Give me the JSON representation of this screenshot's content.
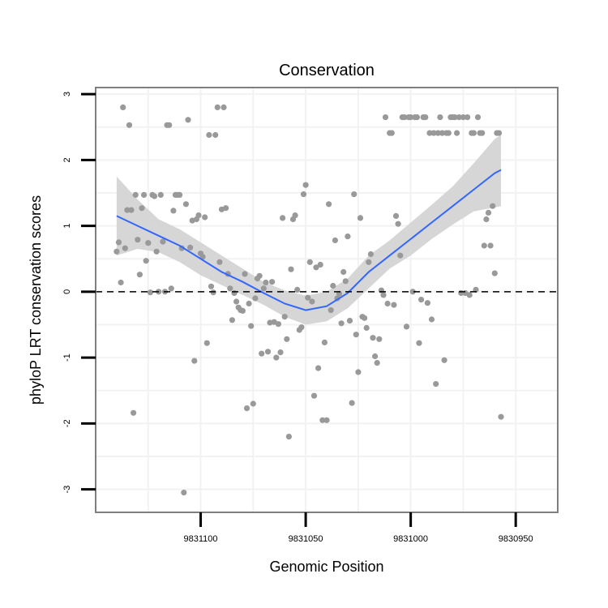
{
  "chart_data": {
    "type": "scatter",
    "title": "Conservation",
    "xlabel": "Genomic Position",
    "ylabel": "phyloP LRT conservation scores",
    "x_reversed": true,
    "xlim": [
      9831150,
      9830930
    ],
    "ylim": [
      -3.35,
      3.1
    ],
    "x_ticks": [
      9831100,
      9831050,
      9831000,
      9830950
    ],
    "x_tick_labels": [
      "9831100",
      "9831050",
      "9831000",
      "9830950"
    ],
    "y_ticks": [
      -3,
      -2,
      -1,
      0,
      1,
      2,
      3
    ],
    "y_tick_labels": [
      "-3",
      "-2",
      "-1",
      "0",
      "1",
      "2",
      "3"
    ],
    "reference_line": {
      "y": 0,
      "style": "dashed"
    },
    "grid": true,
    "colors": {
      "points": "#999999",
      "smooth_line": "#3366FF",
      "ribbon": "#D4D4D4",
      "grid": "#F2F2F2",
      "frame": "#7F7F7F"
    },
    "series": [
      {
        "name": "scores",
        "points": [
          [
            9831140,
            0.61
          ],
          [
            9831139,
            0.75
          ],
          [
            9831138,
            0.14
          ],
          [
            9831137,
            2.8
          ],
          [
            9831136,
            0.66
          ],
          [
            9831135,
            1.24
          ],
          [
            9831134,
            2.53
          ],
          [
            9831133,
            1.24
          ],
          [
            9831132,
            -1.84
          ],
          [
            9831131,
            1.47
          ],
          [
            9831130,
            0.79
          ],
          [
            9831129,
            0.26
          ],
          [
            9831128,
            1.27
          ],
          [
            9831127,
            1.47
          ],
          [
            9831126,
            0.47
          ],
          [
            9831125,
            0.74
          ],
          [
            9831124,
            -0.01
          ],
          [
            9831123,
            1.47
          ],
          [
            9831122,
            1.45
          ],
          [
            9831121,
            0.61
          ],
          [
            9831120,
            0.0
          ],
          [
            9831119,
            1.47
          ],
          [
            9831118,
            0.76
          ],
          [
            9831117,
            0.0
          ],
          [
            9831116,
            2.53
          ],
          [
            9831115,
            2.53
          ],
          [
            9831114,
            0.05
          ],
          [
            9831113,
            1.23
          ],
          [
            9831112,
            1.47
          ],
          [
            9831111,
            1.47
          ],
          [
            9831110,
            1.47
          ],
          [
            9831109,
            0.66
          ],
          [
            9831108,
            -3.05
          ],
          [
            9831107,
            1.33
          ],
          [
            9831106,
            2.61
          ],
          [
            9831105,
            0.67
          ],
          [
            9831104,
            1.08
          ],
          [
            9831103,
            -1.05
          ],
          [
            9831102,
            1.1
          ],
          [
            9831101,
            1.16
          ],
          [
            9831100,
            0.58
          ],
          [
            9831099,
            0.53
          ],
          [
            9831098,
            1.13
          ],
          [
            9831097,
            -0.78
          ],
          [
            9831096,
            2.38
          ],
          [
            9831095,
            0.08
          ],
          [
            9831094,
            -0.01
          ],
          [
            9831093,
            2.38
          ],
          [
            9831092,
            2.8
          ],
          [
            9831091,
            0.45
          ],
          [
            9831090,
            1.25
          ],
          [
            9831089,
            2.8
          ],
          [
            9831088,
            1.27
          ],
          [
            9831087,
            0.27
          ],
          [
            9831086,
            0.05
          ],
          [
            9831085,
            -0.43
          ],
          [
            9831084,
            -0.02
          ],
          [
            9831083,
            -0.15
          ],
          [
            9831082,
            -0.24
          ],
          [
            9831081,
            -0.28
          ],
          [
            9831080,
            -0.29
          ],
          [
            9831079,
            0.27
          ],
          [
            9831078,
            -1.77
          ],
          [
            9831077,
            -0.18
          ],
          [
            9831076,
            -0.52
          ],
          [
            9831075,
            -1.7
          ],
          [
            9831074,
            -0.1
          ],
          [
            9831073,
            0.2
          ],
          [
            9831072,
            0.24
          ],
          [
            9831071,
            -0.94
          ],
          [
            9831070,
            0.05
          ],
          [
            9831069,
            0.14
          ],
          [
            9831068,
            -0.91
          ],
          [
            9831067,
            -0.47
          ],
          [
            9831066,
            0.15
          ],
          [
            9831065,
            -0.46
          ],
          [
            9831064,
            -1.0
          ],
          [
            9831063,
            -0.49
          ],
          [
            9831062,
            -0.92
          ],
          [
            9831061,
            1.12
          ],
          [
            9831060,
            -0.38
          ],
          [
            9831059,
            -0.72
          ],
          [
            9831058,
            -2.2
          ],
          [
            9831057,
            0.34
          ],
          [
            9831056,
            1.1
          ],
          [
            9831055,
            1.16
          ],
          [
            9831054,
            0.03
          ],
          [
            9831053,
            -0.58
          ],
          [
            9831052,
            -0.54
          ],
          [
            9831051,
            1.48
          ],
          [
            9831050,
            1.62
          ],
          [
            9831049,
            -0.09
          ],
          [
            9831048,
            0.45
          ],
          [
            9831047,
            -0.15
          ],
          [
            9831046,
            -1.58
          ],
          [
            9831045,
            0.37
          ],
          [
            9831044,
            -1.16
          ],
          [
            9831043,
            0.41
          ],
          [
            9831042,
            -1.95
          ],
          [
            9831041,
            -0.77
          ],
          [
            9831040,
            -1.95
          ],
          [
            9831039,
            1.33
          ],
          [
            9831038,
            -0.28
          ],
          [
            9831037,
            0.09
          ],
          [
            9831036,
            0.78
          ],
          [
            9831035,
            -0.1
          ],
          [
            9831034,
            -0.03
          ],
          [
            9831033,
            -0.48
          ],
          [
            9831032,
            0.3
          ],
          [
            9831031,
            0.16
          ],
          [
            9831030,
            0.84
          ],
          [
            9831029,
            -0.44
          ],
          [
            9831028,
            -1.69
          ],
          [
            9831027,
            1.48
          ],
          [
            9831026,
            -0.65
          ],
          [
            9831025,
            -1.22
          ],
          [
            9831024,
            1.12
          ],
          [
            9831023,
            -0.38
          ],
          [
            9831022,
            -0.4
          ],
          [
            9831021,
            -0.55
          ],
          [
            9831020,
            0.45
          ],
          [
            9831019,
            0.57
          ],
          [
            9831018,
            -0.7
          ],
          [
            9831017,
            -0.98
          ],
          [
            9831016,
            -1.08
          ],
          [
            9831015,
            -0.72
          ],
          [
            9831014,
            0.02
          ],
          [
            9831013,
            -0.05
          ],
          [
            9831012,
            2.65
          ],
          [
            9831011,
            -0.18
          ],
          [
            9831010,
            2.41
          ],
          [
            9831009,
            2.41
          ],
          [
            9831008,
            -0.2
          ],
          [
            9831007,
            1.15
          ],
          [
            9831006,
            1.03
          ],
          [
            9831005,
            0.55
          ],
          [
            9831004,
            2.65
          ],
          [
            9831003,
            2.65
          ],
          [
            9831002,
            -0.53
          ],
          [
            9831001,
            2.65
          ],
          [
            9831000,
            2.65
          ],
          [
            9830999,
            0.0
          ],
          [
            9830998,
            2.65
          ],
          [
            9830997,
            2.65
          ],
          [
            9830996,
            -0.78
          ],
          [
            9830995,
            -0.12
          ],
          [
            9830994,
            2.65
          ],
          [
            9830993,
            2.65
          ],
          [
            9830992,
            -0.17
          ],
          [
            9830991,
            2.41
          ],
          [
            9830990,
            -0.42
          ],
          [
            9830989,
            2.41
          ],
          [
            9830988,
            -1.4
          ],
          [
            9830987,
            2.41
          ],
          [
            9830986,
            2.65
          ],
          [
            9830985,
            2.41
          ],
          [
            9830984,
            -1.04
          ],
          [
            9830983,
            2.41
          ],
          [
            9830982,
            2.41
          ],
          [
            9830981,
            2.65
          ],
          [
            9830980,
            2.65
          ],
          [
            9830979,
            2.65
          ],
          [
            9830978,
            2.41
          ],
          [
            9830977,
            2.65
          ],
          [
            9830976,
            -0.02
          ],
          [
            9830975,
            2.65
          ],
          [
            9830974,
            -0.02
          ],
          [
            9830973,
            2.65
          ],
          [
            9830972,
            -0.05
          ],
          [
            9830971,
            2.41
          ],
          [
            9830970,
            2.41
          ],
          [
            9830969,
            0.03
          ],
          [
            9830968,
            2.65
          ],
          [
            9830967,
            2.41
          ],
          [
            9830966,
            2.41
          ],
          [
            9830965,
            0.7
          ],
          [
            9830964,
            1.1
          ],
          [
            9830963,
            1.2
          ],
          [
            9830962,
            0.7
          ],
          [
            9830961,
            1.3
          ],
          [
            9830960,
            0.28
          ],
          [
            9830959,
            2.41
          ],
          [
            9830958,
            2.41
          ],
          [
            9830957,
            -1.9
          ]
        ]
      }
    ],
    "smooth": {
      "method": "loess",
      "x": [
        9831140,
        9831130,
        9831120,
        9831110,
        9831100,
        9831090,
        9831080,
        9831070,
        9831060,
        9831050,
        9831040,
        9831030,
        9831020,
        9831010,
        9831000,
        9830990,
        9830980,
        9830970,
        9830960,
        9830957
      ],
      "y": [
        1.15,
        1.0,
        0.85,
        0.7,
        0.5,
        0.3,
        0.15,
        -0.02,
        -0.18,
        -0.28,
        -0.22,
        -0.02,
        0.3,
        0.55,
        0.8,
        1.05,
        1.3,
        1.55,
        1.8,
        1.85
      ],
      "lower": [
        0.55,
        0.65,
        0.6,
        0.45,
        0.25,
        0.1,
        -0.05,
        -0.2,
        -0.38,
        -0.5,
        -0.45,
        -0.25,
        0.05,
        0.35,
        0.55,
        0.8,
        1.02,
        1.22,
        1.28,
        1.3
      ],
      "upper": [
        1.75,
        1.4,
        1.1,
        0.95,
        0.75,
        0.55,
        0.35,
        0.15,
        0.02,
        -0.06,
        0.0,
        0.2,
        0.55,
        0.78,
        1.05,
        1.32,
        1.6,
        1.95,
        2.32,
        2.38
      ]
    }
  }
}
